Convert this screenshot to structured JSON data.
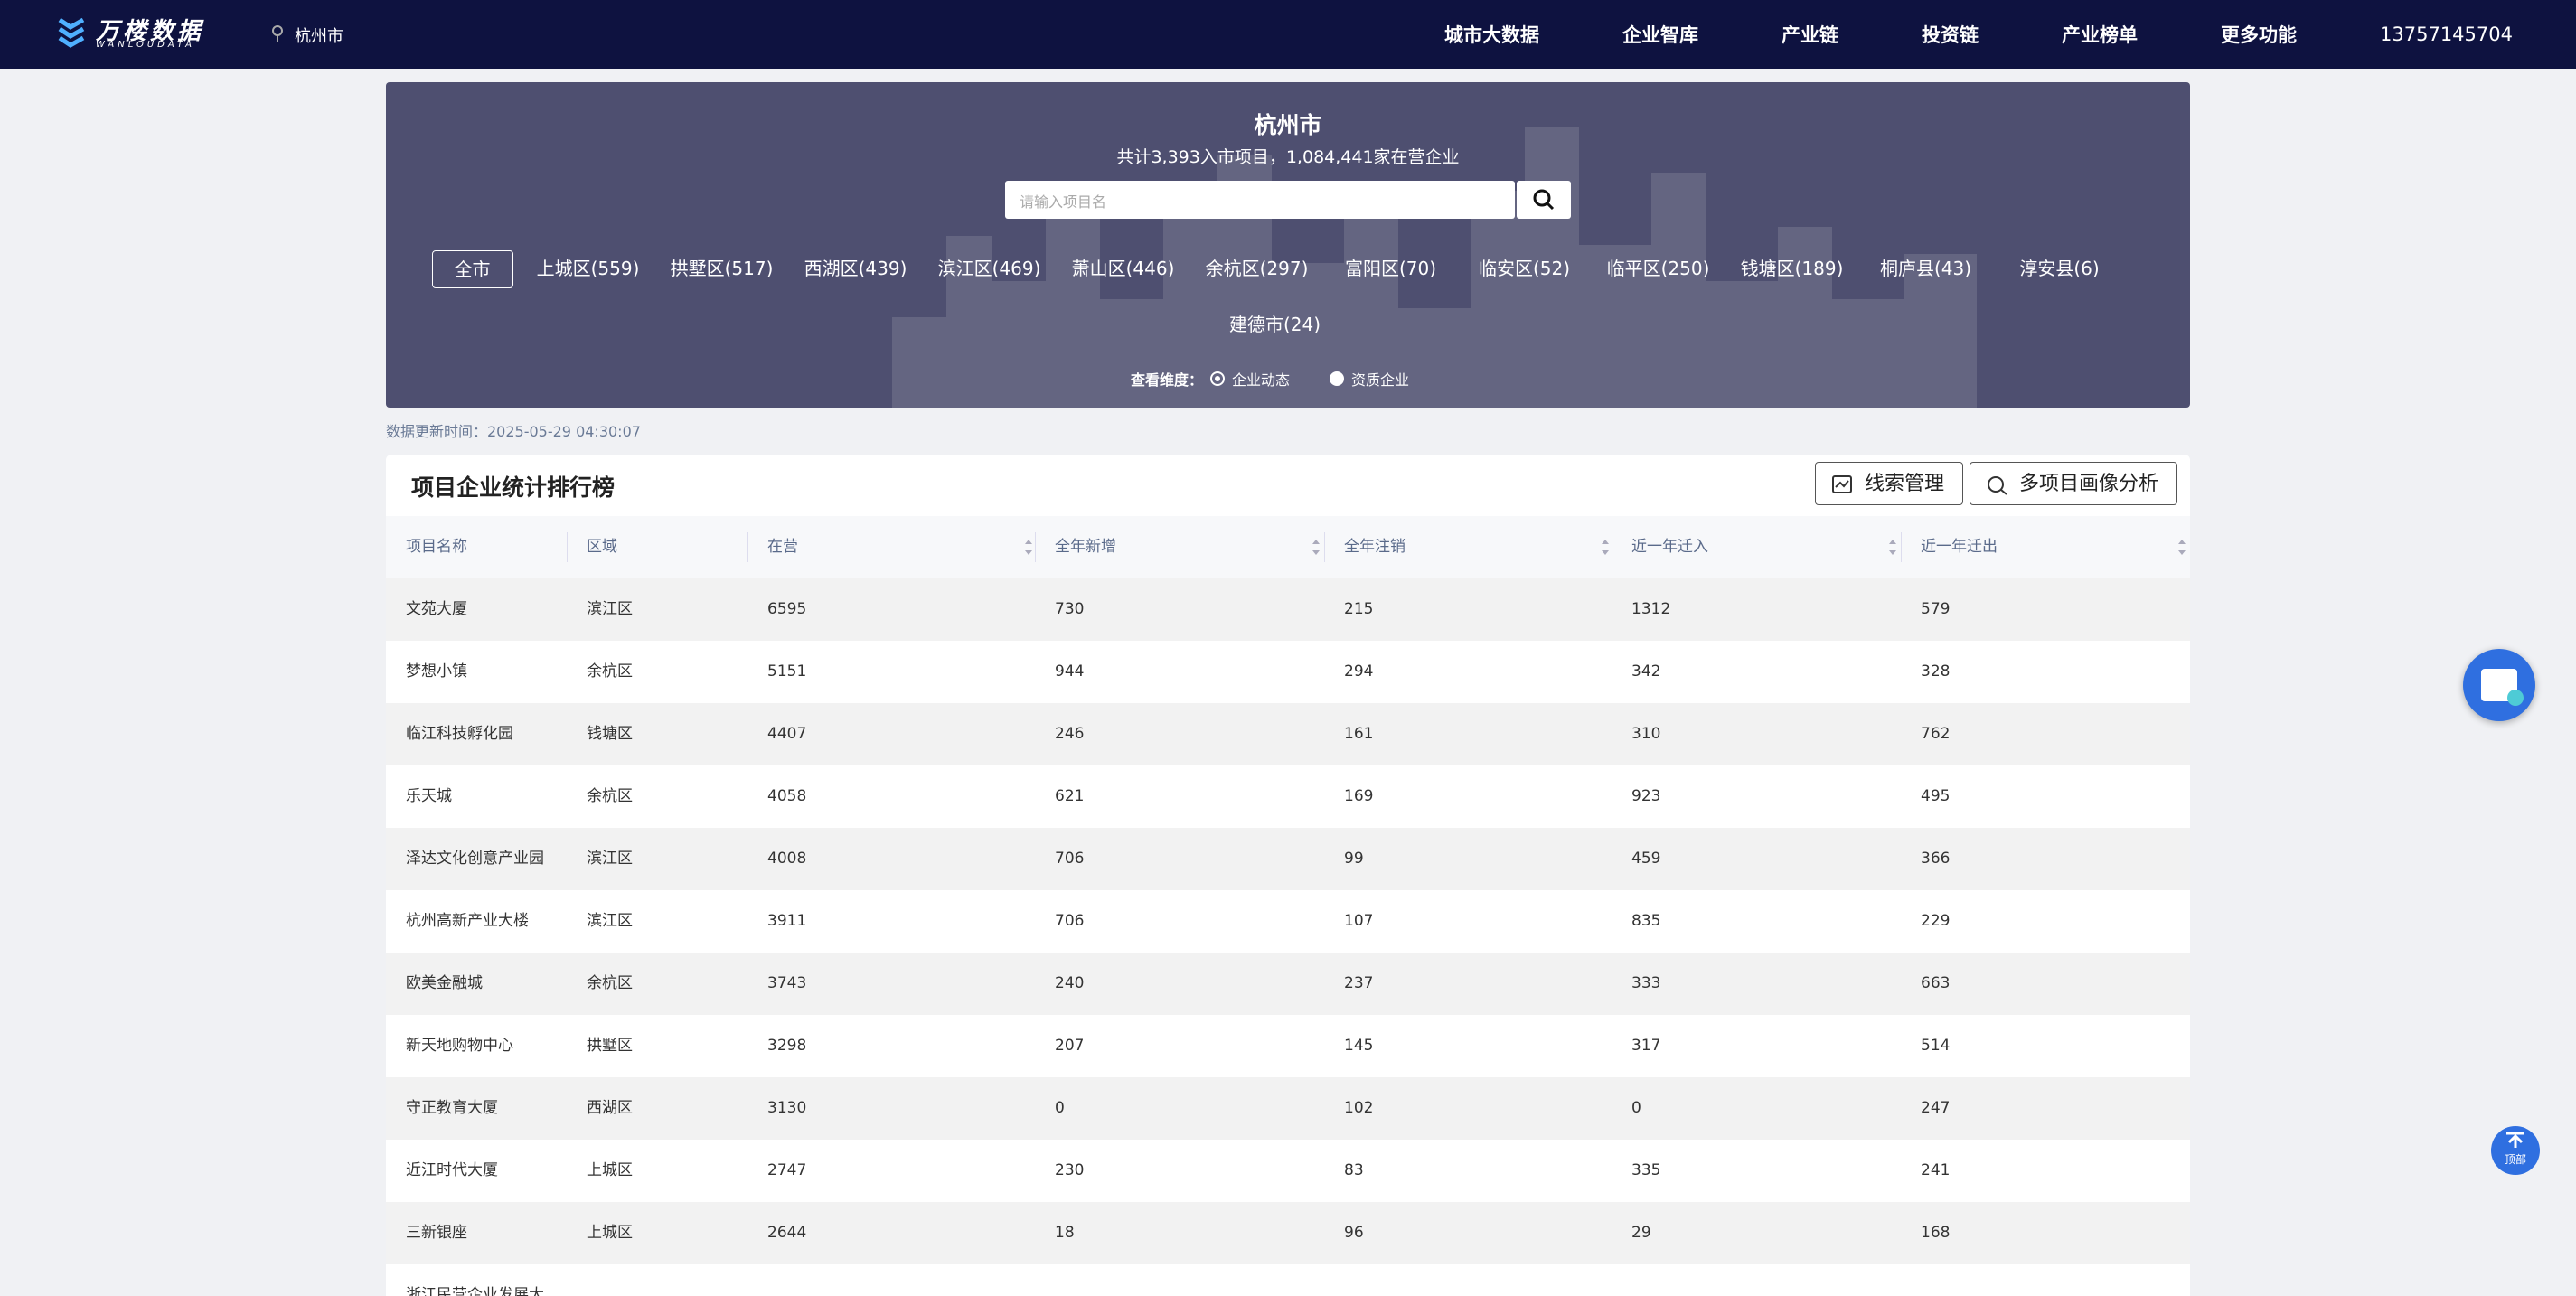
{
  "nav": {
    "logo": "万楼数据",
    "logo_sub": "WANLOUDATA",
    "city": "杭州市",
    "menu": [
      "城市大数据",
      "企业智库",
      "产业链",
      "投资链",
      "产业榜单",
      "更多功能"
    ],
    "user": "13757145704"
  },
  "banner": {
    "title": "杭州市",
    "summary": "共计3,393入市项目，1,084,441家在营企业",
    "search_placeholder": "请输入项目名",
    "districts": [
      "全市",
      "上城区(559)",
      "拱墅区(517)",
      "西湖区(439)",
      "滨江区(469)",
      "萧山区(446)",
      "余杭区(297)",
      "富阳区(70)",
      "临安区(52)",
      "临平区(250)",
      "钱塘区(189)",
      "桐庐县(43)",
      "淳安县(6)",
      "建德市(24)"
    ],
    "view_label": "查看维度：",
    "view_options": [
      "企业动态",
      "资质企业"
    ]
  },
  "update_time": "数据更新时间：2025-05-29 04:30:07",
  "table": {
    "title": "项目企业统计排行榜",
    "buttons": [
      "线索管理",
      "多项目画像分析"
    ],
    "headers": [
      "项目名称",
      "区域",
      "在营",
      "全年新增",
      "全年注销",
      "近一年迁入",
      "近一年迁出"
    ],
    "rows": [
      [
        "文苑大厦",
        "滨江区",
        6595,
        730,
        215,
        1312,
        579
      ],
      [
        "梦想小镇",
        "余杭区",
        5151,
        944,
        294,
        342,
        328
      ],
      [
        "临江科技孵化园",
        "钱塘区",
        4407,
        246,
        161,
        310,
        762
      ],
      [
        "乐天城",
        "余杭区",
        4058,
        621,
        169,
        923,
        495
      ],
      [
        "泽达文化创意产业园",
        "滨江区",
        4008,
        706,
        99,
        459,
        366
      ],
      [
        "杭州高新产业大楼",
        "滨江区",
        3911,
        706,
        107,
        835,
        229
      ],
      [
        "欧美金融城",
        "余杭区",
        3743,
        240,
        237,
        333,
        663
      ],
      [
        "新天地购物中心",
        "拱墅区",
        3298,
        207,
        145,
        317,
        514
      ],
      [
        "守正教育大厦",
        "西湖区",
        3130,
        0,
        102,
        0,
        247
      ],
      [
        "近江时代大厦",
        "上城区",
        2747,
        230,
        83,
        335,
        241
      ],
      [
        "三新银座",
        "上城区",
        2644,
        18,
        96,
        29,
        168
      ],
      [
        "浙江民营企业发展大"
      ]
    ]
  },
  "float": {
    "top_label": "顶部"
  }
}
